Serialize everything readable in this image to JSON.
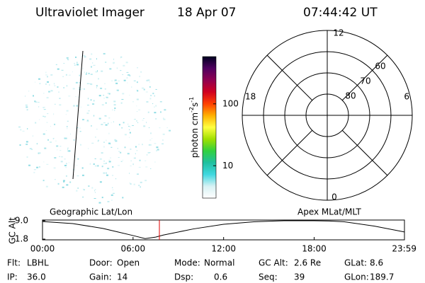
{
  "header": {
    "instrument": "Ultraviolet Imager",
    "date": "18 Apr 07",
    "time": "07:44:42 UT"
  },
  "colorbar": {
    "label": [
      "photon cm",
      "-2",
      "s",
      "-1"
    ],
    "scale": "log",
    "lim": [
      3,
      580
    ],
    "ticks": [
      10,
      100
    ],
    "colors": [
      "#ffffff",
      "#d8f2f4",
      "#40d8e0",
      "#20c0a0",
      "#30d040",
      "#a0e000",
      "#ffff40",
      "#ffb000",
      "#ff4000",
      "#d00020",
      "#900050",
      "#500060",
      "#000020"
    ]
  },
  "polar": {
    "lat_lim": [
      50,
      90
    ],
    "lat_rings": [
      60,
      70,
      80
    ],
    "mlt_labels": {
      "top": "12",
      "left": "18",
      "right": "6",
      "bottom": "0"
    }
  },
  "orbit": {
    "ylabel": "GC Alt",
    "left_title": "Geographic Lat/Lon",
    "right_title": "Apex MLat/MLT",
    "xlim": [
      0,
      23.983
    ],
    "ylim": [
      1.8,
      9.0
    ],
    "xticks": [
      {
        "value": 0,
        "label": "00:00"
      },
      {
        "value": 6,
        "label": "06:00"
      },
      {
        "value": 12,
        "label": "12:00"
      },
      {
        "value": 18,
        "label": "18:00"
      },
      {
        "value": 23.983,
        "label": "23:59"
      }
    ],
    "yticks": [
      {
        "value": 9.0,
        "label": "9.0"
      },
      {
        "value": 1.8,
        "label": "1.8"
      }
    ],
    "x": [
      0,
      2,
      4,
      5,
      6,
      6.8,
      7.5,
      8,
      10,
      12,
      14,
      16,
      18,
      19,
      20,
      22,
      23.983
    ],
    "values": [
      8.7,
      7.9,
      6.0,
      4.6,
      3.2,
      2.0,
      2.6,
      3.4,
      5.8,
      7.6,
      8.6,
      9.0,
      9.0,
      8.9,
      8.6,
      6.9,
      4.6
    ],
    "current_time": 7.745,
    "current_color": "#e00000"
  },
  "status": [
    [
      {
        "label": "Flt:",
        "value": "LBHL"
      },
      {
        "label": "Door:",
        "value": "Open"
      },
      {
        "label": "Mode:",
        "value": "Normal"
      },
      {
        "label": "GC Alt:",
        "value": "2.6 Re"
      },
      {
        "label": "GLat:",
        "value": "8.6"
      }
    ],
    [
      {
        "label": "IP:",
        "value": "36.0"
      },
      {
        "label": "Gain:",
        "value": "14"
      },
      {
        "label": "Dsp:",
        "value": "0.6"
      },
      {
        "label": "Seq:",
        "value": "39"
      },
      {
        "label": "GLon:",
        "value": "189.7"
      }
    ]
  ]
}
